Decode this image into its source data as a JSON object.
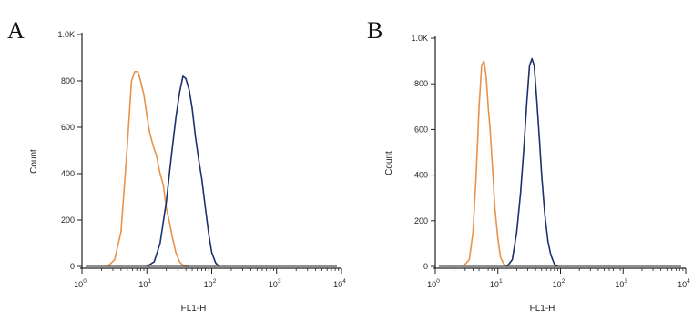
{
  "chart_data": [
    {
      "type": "line",
      "panel_label": "A",
      "xlabel": "FL1-H",
      "ylabel": "Count",
      "x_scale": "log",
      "xlim": [
        1,
        10000
      ],
      "ylim": [
        0,
        1000
      ],
      "y_ticks": [
        "0",
        "200",
        "400",
        "600",
        "800",
        "1.0K"
      ],
      "x_ticks": [
        {
          "base": "10",
          "exp": "0"
        },
        {
          "base": "10",
          "exp": "1"
        },
        {
          "base": "10",
          "exp": "2"
        },
        {
          "base": "10",
          "exp": "3"
        },
        {
          "base": "10",
          "exp": "4"
        }
      ],
      "series": [
        {
          "color": "#e8924a",
          "x": [
            2.5,
            3.2,
            4.0,
            5.0,
            5.8,
            6.5,
            7.3,
            8.0,
            9.0,
            10.0,
            11.0,
            12.5,
            14.0,
            16.0,
            18.0,
            20.0,
            22.0,
            25.0,
            28.0,
            32.0,
            36.0,
            40.0,
            45.0
          ],
          "y": [
            0,
            30,
            150,
            520,
            800,
            840,
            840,
            800,
            740,
            650,
            580,
            520,
            480,
            400,
            350,
            250,
            200,
            120,
            60,
            20,
            5,
            0,
            0
          ]
        },
        {
          "color": "#1e2f6e",
          "x": [
            10.0,
            13.0,
            16.0,
            20.0,
            24.0,
            28.0,
            32.0,
            36.0,
            40.0,
            45.0,
            50.0,
            56.0,
            63.0,
            70.0,
            80.0,
            90.0,
            100.0,
            115.0,
            130.0
          ],
          "y": [
            0,
            20,
            100,
            280,
            480,
            640,
            750,
            820,
            810,
            760,
            680,
            560,
            460,
            380,
            250,
            140,
            60,
            15,
            0
          ]
        }
      ]
    },
    {
      "type": "line",
      "panel_label": "B",
      "xlabel": "FL1-H",
      "ylabel": "Count",
      "x_scale": "log",
      "xlim": [
        1,
        10000
      ],
      "ylim": [
        0,
        1000
      ],
      "y_ticks": [
        "0",
        "200",
        "400",
        "600",
        "800",
        "1.0K"
      ],
      "x_ticks": [
        {
          "base": "10",
          "exp": "0"
        },
        {
          "base": "10",
          "exp": "1"
        },
        {
          "base": "10",
          "exp": "2"
        },
        {
          "base": "10",
          "exp": "3"
        },
        {
          "base": "10",
          "exp": "4"
        }
      ],
      "series": [
        {
          "color": "#e8924a",
          "x": [
            2.8,
            3.5,
            4.0,
            4.5,
            5.0,
            5.5,
            6.0,
            6.5,
            7.0,
            7.5,
            8.0,
            9.0,
            10.0,
            11.0,
            12.5,
            14.0
          ],
          "y": [
            0,
            30,
            150,
            400,
            700,
            880,
            900,
            830,
            700,
            600,
            480,
            250,
            120,
            40,
            10,
            0
          ]
        },
        {
          "color": "#1e2f6e",
          "x": [
            14.0,
            17.0,
            20.0,
            23.0,
            26.0,
            29.0,
            32.0,
            35.0,
            38.0,
            42.0,
            46.0,
            50.0,
            56.0,
            63.0,
            70.0,
            80.0,
            90.0
          ],
          "y": [
            0,
            30,
            150,
            320,
            520,
            720,
            880,
            910,
            880,
            720,
            560,
            400,
            230,
            110,
            50,
            10,
            0
          ]
        }
      ]
    }
  ]
}
